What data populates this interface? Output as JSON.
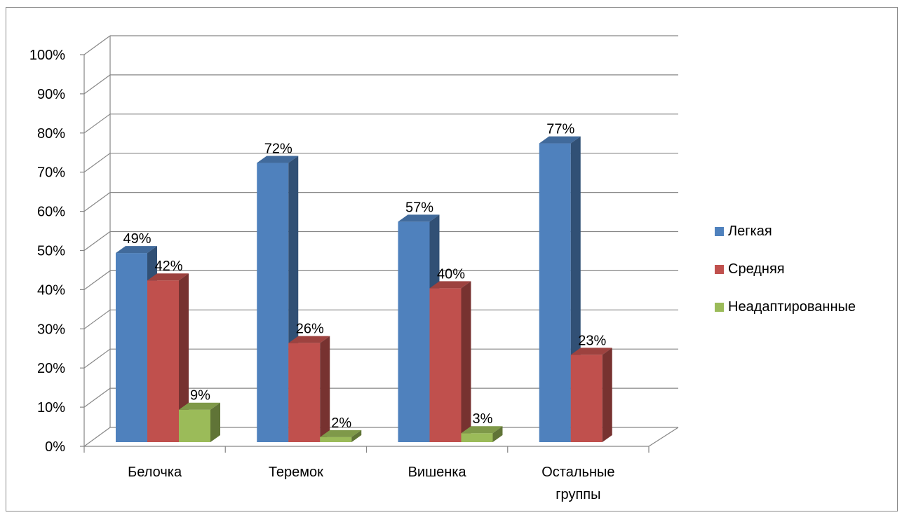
{
  "chart_data": {
    "type": "bar",
    "categories": [
      "Белочка",
      "Теремок",
      "Вишенка",
      "Остальные группы"
    ],
    "series": [
      {
        "name": "Легкая",
        "values": [
          49,
          72,
          57,
          77
        ],
        "labels": [
          "49%",
          "72%",
          "57%",
          "77%"
        ],
        "color": "#4F81BD"
      },
      {
        "name": "Средняя",
        "values": [
          42,
          26,
          40,
          23
        ],
        "labels": [
          "42%",
          "26%",
          "40%",
          "23%"
        ],
        "color": "#C0504D"
      },
      {
        "name": "Неадаптированные",
        "values": [
          9,
          2,
          3,
          null
        ],
        "labels": [
          "9%",
          "2%",
          "3%",
          ""
        ],
        "color": "#9BBB59"
      }
    ],
    "y_ticks": [
      "0%",
      "10%",
      "20%",
      "30%",
      "40%",
      "50%",
      "60%",
      "70%",
      "80%",
      "90%",
      "100%"
    ],
    "ylim": [
      0,
      100
    ],
    "grid": true,
    "legend_position": "right",
    "style": "3d-clustered-column"
  }
}
